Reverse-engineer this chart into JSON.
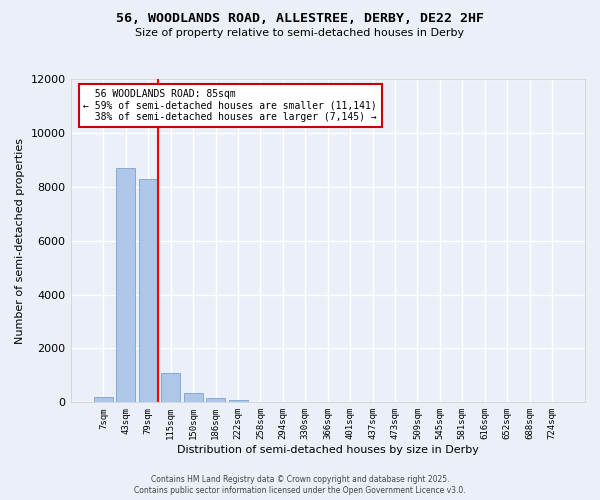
{
  "title": "56, WOODLANDS ROAD, ALLESTREE, DERBY, DE22 2HF",
  "subtitle": "Size of property relative to semi-detached houses in Derby",
  "xlabel": "Distribution of semi-detached houses by size in Derby",
  "ylabel": "Number of semi-detached properties",
  "bar_labels": [
    "7sqm",
    "43sqm",
    "79sqm",
    "115sqm",
    "150sqm",
    "186sqm",
    "222sqm",
    "258sqm",
    "294sqm",
    "330sqm",
    "366sqm",
    "401sqm",
    "437sqm",
    "473sqm",
    "509sqm",
    "545sqm",
    "581sqm",
    "616sqm",
    "652sqm",
    "688sqm",
    "724sqm"
  ],
  "bar_values": [
    200,
    8700,
    8300,
    1100,
    350,
    150,
    100,
    10,
    5,
    3,
    2,
    1,
    1,
    1,
    0,
    0,
    0,
    0,
    0,
    0,
    0
  ],
  "bar_color": "#aec6e8",
  "bar_edge_color": "#6699cc",
  "background_color": "#eaeff8",
  "grid_color": "#ffffff",
  "red_line_x": 2.43,
  "property_label": "56 WOODLANDS ROAD: 85sqm",
  "smaller_pct": 59,
  "smaller_count": 11141,
  "larger_pct": 38,
  "larger_count": 7145,
  "ylim": [
    0,
    12000
  ],
  "yticks": [
    0,
    2000,
    4000,
    6000,
    8000,
    10000,
    12000
  ],
  "annotation_box_color": "#ffffff",
  "annotation_box_edge": "#cc0000",
  "footer1": "Contains HM Land Registry data © Crown copyright and database right 2025.",
  "footer2": "Contains public sector information licensed under the Open Government Licence v3.0."
}
